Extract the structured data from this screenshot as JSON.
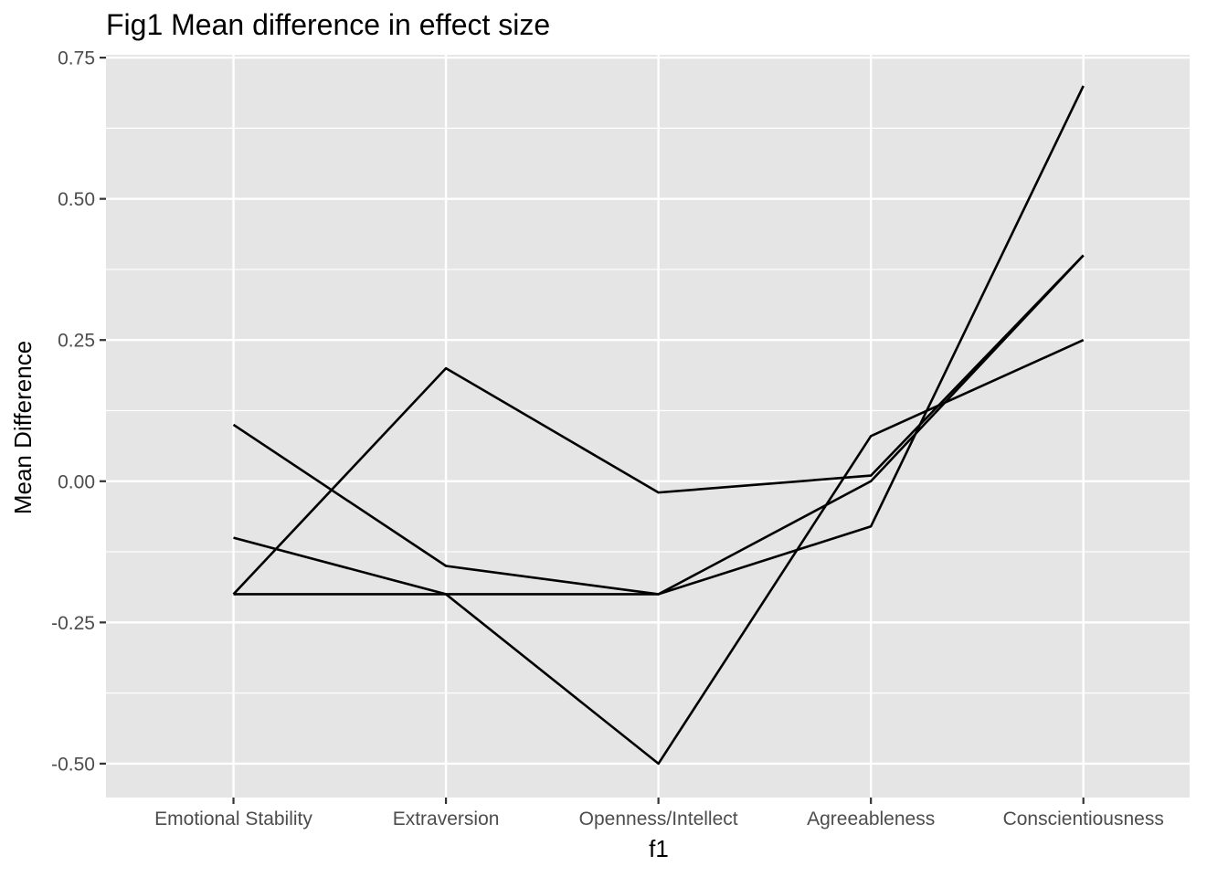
{
  "chart_data": {
    "type": "line",
    "title": "Fig1 Mean difference in effect size",
    "xlabel": "f1",
    "ylabel": "Mean Difference",
    "categories": [
      "Emotional Stability",
      "Extraversion",
      "Openness/Intellect",
      "Agreeableness",
      "Conscientiousness"
    ],
    "y_ticks": [
      -0.5,
      -0.25,
      0.0,
      0.25,
      0.5,
      0.75
    ],
    "y_tick_labels": [
      "-0.50",
      "-0.25",
      "0.00",
      "0.25",
      "0.50",
      "0.75"
    ],
    "ylim": [
      -0.56,
      0.755
    ],
    "grid": true,
    "legend": "none",
    "series": [
      {
        "values": [
          0.1,
          -0.15,
          -0.2,
          0.0,
          0.4
        ]
      },
      {
        "values": [
          -0.2,
          0.2,
          -0.02,
          0.01,
          0.4
        ]
      },
      {
        "values": [
          -0.1,
          -0.2,
          -0.5,
          0.08,
          0.25
        ]
      },
      {
        "values": [
          -0.2,
          -0.2,
          -0.2,
          -0.08,
          0.7
        ]
      }
    ],
    "colors": {
      "panel_background": "#e5e5e5",
      "grid": "#ffffff",
      "line": "#000000",
      "tick_text": "#4d4d4d",
      "tick_mark": "#333333"
    }
  }
}
